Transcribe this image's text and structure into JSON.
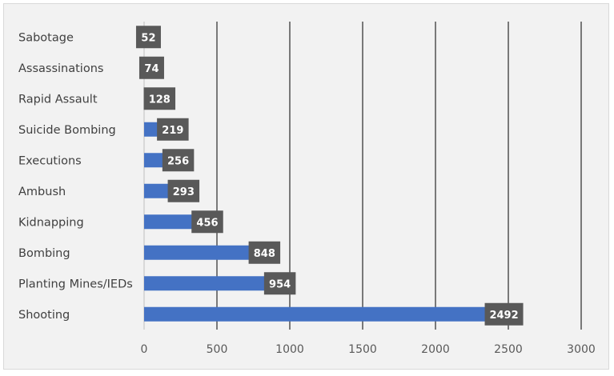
{
  "chart_data": {
    "type": "bar",
    "orientation": "horizontal",
    "categories": [
      "Sabotage",
      "Assassinations",
      "Rapid Assault",
      "Suicide Bombing",
      "Executions",
      "Ambush",
      "Kidnapping",
      "Bombing",
      "Planting Mines/IEDs",
      "Shooting"
    ],
    "values": [
      52,
      74,
      128,
      219,
      256,
      293,
      456,
      848,
      954,
      2492
    ],
    "x_ticks": [
      "0",
      "500",
      "1000",
      "1500",
      "2000",
      "2500",
      "3000"
    ],
    "xlim": [
      0,
      3000
    ],
    "grid": "vertical",
    "legend": "none",
    "title": "",
    "xlabel": "",
    "ylabel": "",
    "colors": {
      "bar": "#4472c4",
      "label_box": "#595959",
      "grid": "#000000",
      "background": "#f2f2f2"
    }
  }
}
